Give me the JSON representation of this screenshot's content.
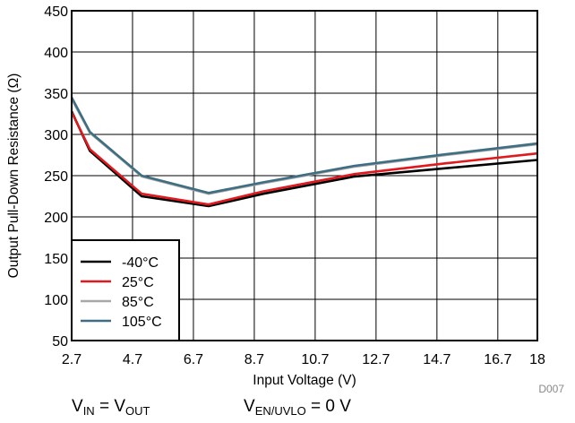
{
  "chart_data": {
    "type": "line",
    "xlabel": "Input Voltage (V)",
    "ylabel": "Output Pull-Down Resistance (Ω)",
    "xlim": [
      2.7,
      18
    ],
    "ylim": [
      50,
      450
    ],
    "x_ticks": [
      2.7,
      4.7,
      6.7,
      8.7,
      10.7,
      12.7,
      14.7,
      16.7,
      18
    ],
    "x_tick_labels": [
      "2.7",
      "4.7",
      "6.7",
      "8.7",
      "10.7",
      "12.7",
      "14.7",
      "16.7",
      "18"
    ],
    "y_ticks": [
      50,
      100,
      150,
      200,
      250,
      300,
      350,
      400,
      450
    ],
    "y_tick_labels": [
      "50",
      "100",
      "150",
      "200",
      "250",
      "300",
      "350",
      "400",
      "450"
    ],
    "grid": true,
    "legend_position": "bottom-left",
    "series": [
      {
        "name": "-40°C",
        "color": "#000000",
        "x": [
          2.7,
          3.3,
          5.0,
          7.2,
          9.0,
          12.0,
          15.0,
          18.0
        ],
        "y": [
          328,
          280,
          225,
          213,
          228,
          249,
          259,
          269
        ]
      },
      {
        "name": "25°C",
        "color": "#e0191e",
        "x": [
          2.7,
          3.3,
          5.0,
          7.2,
          9.0,
          12.0,
          15.0,
          18.0
        ],
        "y": [
          327,
          282,
          228,
          215,
          231,
          252,
          265,
          277
        ]
      },
      {
        "name": "85°C",
        "color": "#a8a8a8",
        "x": [
          2.7,
          3.3,
          5.0,
          7.2,
          9.0,
          12.0,
          15.0,
          18.0
        ],
        "y": [
          343,
          302,
          249,
          228,
          241,
          261,
          275,
          288
        ]
      },
      {
        "name": "105°C",
        "color": "#3e6e82",
        "x": [
          2.7,
          3.3,
          5.0,
          7.2,
          9.0,
          12.0,
          15.0,
          18.0
        ],
        "y": [
          345,
          303,
          250,
          229,
          242,
          262,
          276,
          289
        ]
      }
    ],
    "figure_id": "D007"
  },
  "notes": {
    "vin_prefix": "V",
    "vin_sub": "IN",
    "vin_eq": " = V",
    "vout_sub": "OUT",
    "ven_prefix": "V",
    "ven_sub": "EN/UVLO",
    "ven_eq": " = 0 V"
  }
}
